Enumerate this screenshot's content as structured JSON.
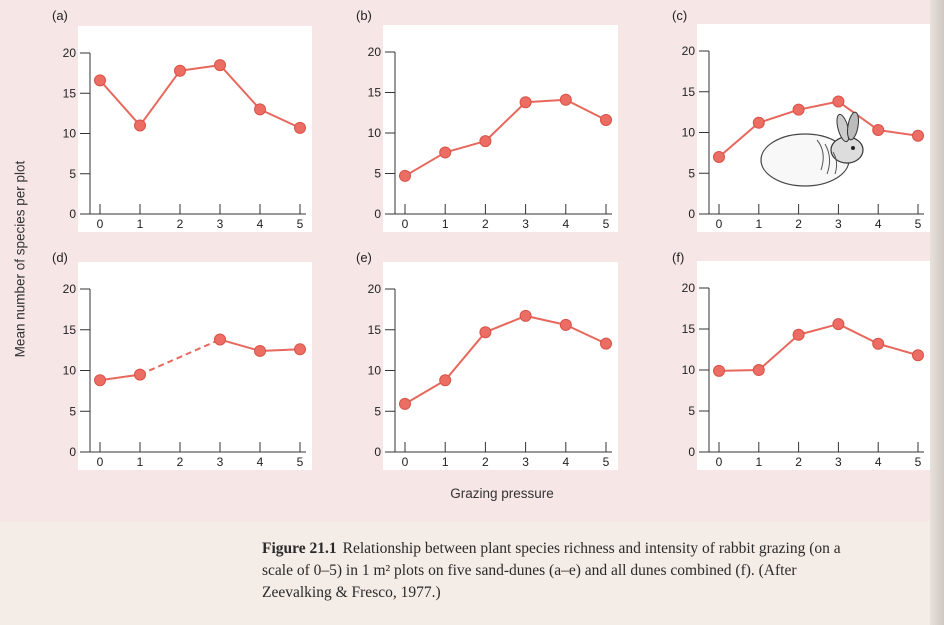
{
  "chart_data": [
    {
      "type": "line",
      "panel_label": "(a)",
      "x": [
        0,
        1,
        2,
        3,
        4,
        5
      ],
      "values": [
        16.6,
        11.0,
        17.8,
        18.5,
        13.0,
        10.7
      ],
      "ylim": [
        0,
        20
      ],
      "xlim": [
        0,
        5
      ],
      "yticks": [
        0,
        5,
        10,
        15,
        20
      ],
      "xticks": [
        0,
        1,
        2,
        3,
        4,
        5
      ]
    },
    {
      "type": "line",
      "panel_label": "(b)",
      "x": [
        0,
        1,
        2,
        3,
        4,
        5
      ],
      "values": [
        4.7,
        7.6,
        9.0,
        13.8,
        14.1,
        11.6
      ],
      "ylim": [
        0,
        20
      ],
      "xlim": [
        0,
        5
      ],
      "yticks": [
        0,
        5,
        10,
        15,
        20
      ],
      "xticks": [
        0,
        1,
        2,
        3,
        4,
        5
      ]
    },
    {
      "type": "line",
      "panel_label": "(c)",
      "x": [
        0,
        1,
        2,
        3,
        4,
        5
      ],
      "values": [
        7.0,
        11.2,
        12.8,
        13.8,
        10.3,
        9.6
      ],
      "ylim": [
        0,
        20
      ],
      "xlim": [
        0,
        5
      ],
      "yticks": [
        0,
        5,
        10,
        15,
        20
      ],
      "xticks": [
        0,
        1,
        2,
        3,
        4,
        5
      ]
    },
    {
      "type": "line",
      "panel_label": "(d)",
      "x": [
        0,
        1,
        3,
        4,
        5
      ],
      "values": [
        8.8,
        9.5,
        13.8,
        12.4,
        12.6
      ],
      "dashed_segments": [
        [
          1,
          3
        ]
      ],
      "ylim": [
        0,
        20
      ],
      "xlim": [
        0,
        5
      ],
      "yticks": [
        0,
        5,
        10,
        15,
        20
      ],
      "xticks": [
        0,
        1,
        2,
        3,
        4,
        5
      ]
    },
    {
      "type": "line",
      "panel_label": "(e)",
      "x": [
        0,
        1,
        2,
        3,
        4,
        5
      ],
      "values": [
        5.9,
        8.8,
        14.7,
        16.7,
        15.6,
        13.3
      ],
      "ylim": [
        0,
        20
      ],
      "xlim": [
        0,
        5
      ],
      "yticks": [
        0,
        5,
        10,
        15,
        20
      ],
      "xticks": [
        0,
        1,
        2,
        3,
        4,
        5
      ]
    },
    {
      "type": "line",
      "panel_label": "(f)",
      "x": [
        0,
        1,
        2,
        3,
        4,
        5
      ],
      "values": [
        9.9,
        10.0,
        14.3,
        15.6,
        13.2,
        11.8
      ],
      "ylim": [
        0,
        20
      ],
      "xlim": [
        0,
        5
      ],
      "yticks": [
        0,
        5,
        10,
        15,
        20
      ],
      "xticks": [
        0,
        1,
        2,
        3,
        4,
        5
      ]
    }
  ],
  "xlabel": "Grazing pressure",
  "ylabel": "Mean number of species per plot",
  "caption": {
    "figure_label": "Figure 21.1",
    "lines": [
      "Relationship between plant species richness and intensity of rabbit grazing (on a",
      "scale of 0–5) in 1 m² plots on five sand-dunes (a–e) and all dunes combined (f). (After",
      "Zeevalking & Fresco, 1977.)"
    ]
  },
  "colors": {
    "series": "#e8675c",
    "marker": "#ec6d63",
    "axis": "#333333",
    "plot_bg": "#ffffff",
    "figure_bg": "#f6e6e6"
  },
  "illustration": "rabbit-illustration"
}
